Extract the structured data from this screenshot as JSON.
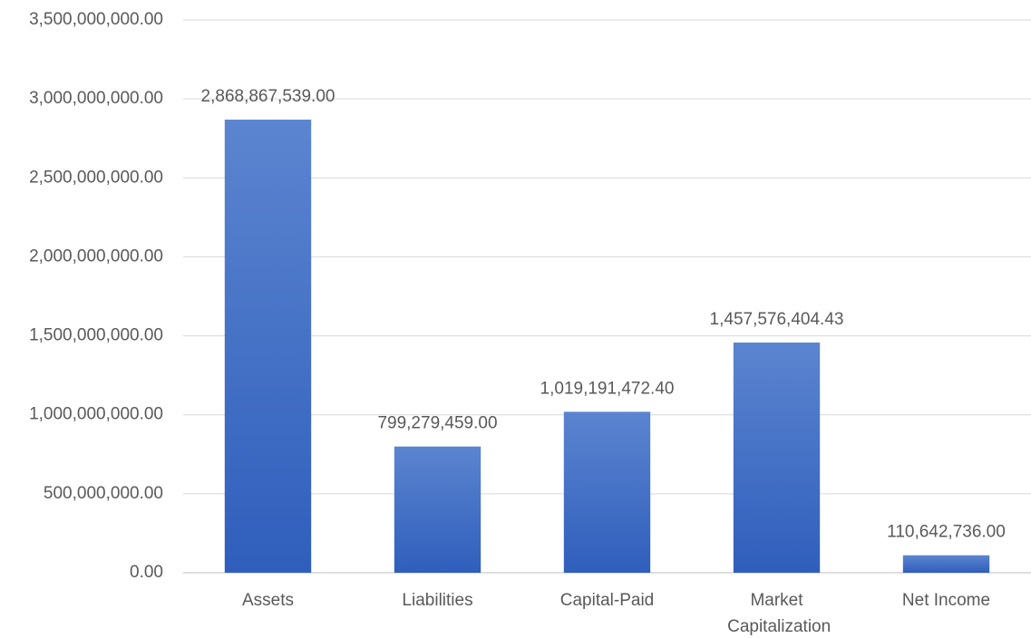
{
  "chart_data": {
    "type": "bar",
    "categories": [
      "Assets",
      "Liabilities",
      "Capital-Paid",
      "Market Capitalization",
      "Net Income"
    ],
    "values": [
      2868867539.0,
      799279459.0,
      1019191472.4,
      1457576404.43,
      110642736.0
    ],
    "value_labels": [
      "2,868,867,539.00",
      "799,279,459.00",
      "1,019,191,472.40",
      "1,457,576,404.43",
      "110,642,736.00"
    ],
    "color": "#4472c4",
    "ylim": [
      0,
      3500000000
    ],
    "yticks": [
      {
        "value": 0,
        "label": "0.00"
      },
      {
        "value": 500000000,
        "label": "500,000,000.00"
      },
      {
        "value": 1000000000,
        "label": "1,000,000,000.00"
      },
      {
        "value": 1500000000,
        "label": "1,500,000,000.00"
      },
      {
        "value": 2000000000,
        "label": "2,000,000,000.00"
      },
      {
        "value": 2500000000,
        "label": "2,500,000,000.00"
      },
      {
        "value": 3000000000,
        "label": "3,000,000,000.00"
      },
      {
        "value": 3500000000,
        "label": "3,500,000,000.00"
      }
    ],
    "grid": true
  }
}
